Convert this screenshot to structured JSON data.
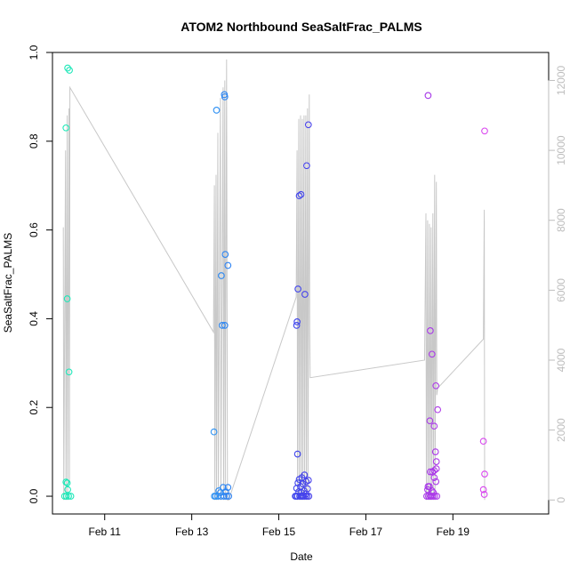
{
  "chart_data": {
    "type": "scatter",
    "title": "ATOM2 Northbound SeaSaltFrac_PALMS",
    "xlabel": "Date",
    "ylabel": "SeaSaltFrac_PALMS",
    "x_unit": "days in February",
    "xlim": [
      9.8,
      21.2
    ],
    "ylim": [
      -0.04,
      1.0
    ],
    "y2lim": [
      -400,
      12800
    ],
    "x_ticks": [
      {
        "value": 11,
        "label": "Feb 11"
      },
      {
        "value": 13,
        "label": "Feb 13"
      },
      {
        "value": 15,
        "label": "Feb 15"
      },
      {
        "value": 17,
        "label": "Feb 17"
      },
      {
        "value": 19,
        "label": "Feb 19"
      }
    ],
    "y_ticks": [
      {
        "value": 0.0,
        "label": "0.0"
      },
      {
        "value": 0.2,
        "label": "0.2"
      },
      {
        "value": 0.4,
        "label": "0.4"
      },
      {
        "value": 0.6,
        "label": "0.6"
      },
      {
        "value": 0.8,
        "label": "0.8"
      },
      {
        "value": 1.0,
        "label": "1.0"
      }
    ],
    "y2_ticks": [
      {
        "value": 0,
        "label": "0"
      },
      {
        "value": 2000,
        "label": "2000"
      },
      {
        "value": 4000,
        "label": "4000"
      },
      {
        "value": 6000,
        "label": "6000"
      },
      {
        "value": 8000,
        "label": "8000"
      },
      {
        "value": 10000,
        "label": "10000"
      },
      {
        "value": 12000,
        "label": "12000"
      }
    ],
    "grid": false,
    "colors": {
      "altitude_line": "#c8c8c8",
      "axis": "#000000",
      "right_axis": "#bdbdbd",
      "points_gradient": [
        "#1de9b6",
        "#29c5f6",
        "#2f4cf0",
        "#7b2be2",
        "#d946ef"
      ]
    },
    "points": [
      {
        "x": 10.15,
        "y": 0.965
      },
      {
        "x": 10.19,
        "y": 0.96
      },
      {
        "x": 10.11,
        "y": 0.83
      },
      {
        "x": 10.14,
        "y": 0.445
      },
      {
        "x": 10.18,
        "y": 0.28
      },
      {
        "x": 10.11,
        "y": 0.032
      },
      {
        "x": 10.14,
        "y": 0.03
      },
      {
        "x": 10.15,
        "y": 0.015
      },
      {
        "x": 10.12,
        "y": 0.0
      },
      {
        "x": 10.08,
        "y": 0.0
      },
      {
        "x": 10.17,
        "y": 0.0
      },
      {
        "x": 10.22,
        "y": 0.0
      },
      {
        "x": 13.57,
        "y": 0.87
      },
      {
        "x": 13.75,
        "y": 0.905
      },
      {
        "x": 13.76,
        "y": 0.9
      },
      {
        "x": 13.77,
        "y": 0.545
      },
      {
        "x": 13.83,
        "y": 0.52
      },
      {
        "x": 13.68,
        "y": 0.497
      },
      {
        "x": 13.7,
        "y": 0.385
      },
      {
        "x": 13.76,
        "y": 0.385
      },
      {
        "x": 13.51,
        "y": 0.145
      },
      {
        "x": 13.72,
        "y": 0.02
      },
      {
        "x": 13.83,
        "y": 0.02
      },
      {
        "x": 13.62,
        "y": 0.012
      },
      {
        "x": 13.78,
        "y": 0.01
      },
      {
        "x": 13.66,
        "y": 0.008
      },
      {
        "x": 13.55,
        "y": 0.0
      },
      {
        "x": 13.6,
        "y": 0.0
      },
      {
        "x": 13.67,
        "y": 0.0
      },
      {
        "x": 13.74,
        "y": 0.0
      },
      {
        "x": 13.8,
        "y": 0.0
      },
      {
        "x": 13.85,
        "y": 0.0
      },
      {
        "x": 13.52,
        "y": 0.0
      },
      {
        "x": 15.68,
        "y": 0.837
      },
      {
        "x": 15.64,
        "y": 0.745
      },
      {
        "x": 15.51,
        "y": 0.68
      },
      {
        "x": 15.47,
        "y": 0.677
      },
      {
        "x": 15.44,
        "y": 0.467
      },
      {
        "x": 15.6,
        "y": 0.455
      },
      {
        "x": 15.42,
        "y": 0.393
      },
      {
        "x": 15.41,
        "y": 0.385
      },
      {
        "x": 15.43,
        "y": 0.095
      },
      {
        "x": 15.59,
        "y": 0.048
      },
      {
        "x": 15.53,
        "y": 0.042
      },
      {
        "x": 15.47,
        "y": 0.038
      },
      {
        "x": 15.68,
        "y": 0.036
      },
      {
        "x": 15.63,
        "y": 0.033
      },
      {
        "x": 15.44,
        "y": 0.03
      },
      {
        "x": 15.55,
        "y": 0.028
      },
      {
        "x": 15.5,
        "y": 0.022
      },
      {
        "x": 15.41,
        "y": 0.018
      },
      {
        "x": 15.66,
        "y": 0.017
      },
      {
        "x": 15.58,
        "y": 0.012
      },
      {
        "x": 15.46,
        "y": 0.01
      },
      {
        "x": 15.52,
        "y": 0.008
      },
      {
        "x": 15.62,
        "y": 0.005
      },
      {
        "x": 15.4,
        "y": 0.0
      },
      {
        "x": 15.43,
        "y": 0.0
      },
      {
        "x": 15.48,
        "y": 0.0
      },
      {
        "x": 15.51,
        "y": 0.0
      },
      {
        "x": 15.54,
        "y": 0.0
      },
      {
        "x": 15.57,
        "y": 0.0
      },
      {
        "x": 15.61,
        "y": 0.0
      },
      {
        "x": 15.65,
        "y": 0.0
      },
      {
        "x": 15.69,
        "y": 0.0
      },
      {
        "x": 15.38,
        "y": 0.0
      },
      {
        "x": 18.43,
        "y": 0.903
      },
      {
        "x": 18.48,
        "y": 0.373
      },
      {
        "x": 18.52,
        "y": 0.32
      },
      {
        "x": 18.61,
        "y": 0.249
      },
      {
        "x": 18.65,
        "y": 0.195
      },
      {
        "x": 18.47,
        "y": 0.17
      },
      {
        "x": 18.57,
        "y": 0.158
      },
      {
        "x": 18.6,
        "y": 0.1
      },
      {
        "x": 18.62,
        "y": 0.078
      },
      {
        "x": 18.62,
        "y": 0.062
      },
      {
        "x": 18.48,
        "y": 0.055
      },
      {
        "x": 18.53,
        "y": 0.055
      },
      {
        "x": 18.57,
        "y": 0.058
      },
      {
        "x": 18.57,
        "y": 0.042
      },
      {
        "x": 18.61,
        "y": 0.033
      },
      {
        "x": 18.43,
        "y": 0.022
      },
      {
        "x": 18.46,
        "y": 0.022
      },
      {
        "x": 18.42,
        "y": 0.015
      },
      {
        "x": 18.52,
        "y": 0.012
      },
      {
        "x": 18.55,
        "y": 0.008
      },
      {
        "x": 18.4,
        "y": 0.0
      },
      {
        "x": 18.44,
        "y": 0.0
      },
      {
        "x": 18.48,
        "y": 0.0
      },
      {
        "x": 18.5,
        "y": 0.0
      },
      {
        "x": 18.54,
        "y": 0.0
      },
      {
        "x": 18.58,
        "y": 0.0
      },
      {
        "x": 18.63,
        "y": 0.0
      },
      {
        "x": 19.73,
        "y": 0.823
      },
      {
        "x": 19.7,
        "y": 0.124
      },
      {
        "x": 19.73,
        "y": 0.05
      },
      {
        "x": 19.7,
        "y": 0.015
      },
      {
        "x": 19.72,
        "y": 0.004
      }
    ],
    "altitude_series": [
      {
        "x": 10.05,
        "y": 7800
      },
      {
        "x": 10.06,
        "y": 0
      },
      {
        "x": 10.1,
        "y": 10000
      },
      {
        "x": 10.11,
        "y": 0
      },
      {
        "x": 10.14,
        "y": 11000
      },
      {
        "x": 10.15,
        "y": 0
      },
      {
        "x": 10.18,
        "y": 11200
      },
      {
        "x": 10.19,
        "y": 500
      },
      {
        "x": 10.2,
        "y": 11800
      },
      {
        "x": 13.5,
        "y": 4800
      },
      {
        "x": 13.52,
        "y": 9000
      },
      {
        "x": 13.53,
        "y": 0
      },
      {
        "x": 13.56,
        "y": 9300
      },
      {
        "x": 13.57,
        "y": 0
      },
      {
        "x": 13.6,
        "y": 10500
      },
      {
        "x": 13.61,
        "y": 0
      },
      {
        "x": 13.66,
        "y": 11500
      },
      {
        "x": 13.67,
        "y": 0
      },
      {
        "x": 13.72,
        "y": 11800
      },
      {
        "x": 13.73,
        "y": 0
      },
      {
        "x": 13.76,
        "y": 12000
      },
      {
        "x": 13.77,
        "y": 0
      },
      {
        "x": 13.8,
        "y": 12600
      },
      {
        "x": 13.82,
        "y": 0
      },
      {
        "x": 13.85,
        "y": 0
      },
      {
        "x": 15.4,
        "y": 5800
      },
      {
        "x": 15.42,
        "y": 10000
      },
      {
        "x": 15.43,
        "y": 0
      },
      {
        "x": 15.46,
        "y": 10900
      },
      {
        "x": 15.47,
        "y": 0
      },
      {
        "x": 15.5,
        "y": 11000
      },
      {
        "x": 15.51,
        "y": 0
      },
      {
        "x": 15.54,
        "y": 10900
      },
      {
        "x": 15.55,
        "y": 0
      },
      {
        "x": 15.58,
        "y": 11000
      },
      {
        "x": 15.59,
        "y": 0
      },
      {
        "x": 15.62,
        "y": 11000
      },
      {
        "x": 15.63,
        "y": 0
      },
      {
        "x": 15.66,
        "y": 11200
      },
      {
        "x": 15.67,
        "y": 0
      },
      {
        "x": 15.7,
        "y": 11600
      },
      {
        "x": 15.71,
        "y": 4900
      },
      {
        "x": 15.72,
        "y": 3500
      },
      {
        "x": 18.35,
        "y": 4000
      },
      {
        "x": 18.38,
        "y": 8200
      },
      {
        "x": 18.39,
        "y": 0
      },
      {
        "x": 18.42,
        "y": 8000
      },
      {
        "x": 18.43,
        "y": 0
      },
      {
        "x": 18.46,
        "y": 7900
      },
      {
        "x": 18.47,
        "y": 0
      },
      {
        "x": 18.5,
        "y": 7800
      },
      {
        "x": 18.51,
        "y": 0
      },
      {
        "x": 18.54,
        "y": 8200
      },
      {
        "x": 18.55,
        "y": 0
      },
      {
        "x": 18.58,
        "y": 9300
      },
      {
        "x": 18.59,
        "y": 0
      },
      {
        "x": 18.62,
        "y": 9100
      },
      {
        "x": 18.63,
        "y": 3000
      },
      {
        "x": 18.65,
        "y": 3200
      },
      {
        "x": 19.7,
        "y": 4600
      },
      {
        "x": 19.72,
        "y": 8300
      },
      {
        "x": 19.73,
        "y": 0
      }
    ]
  }
}
